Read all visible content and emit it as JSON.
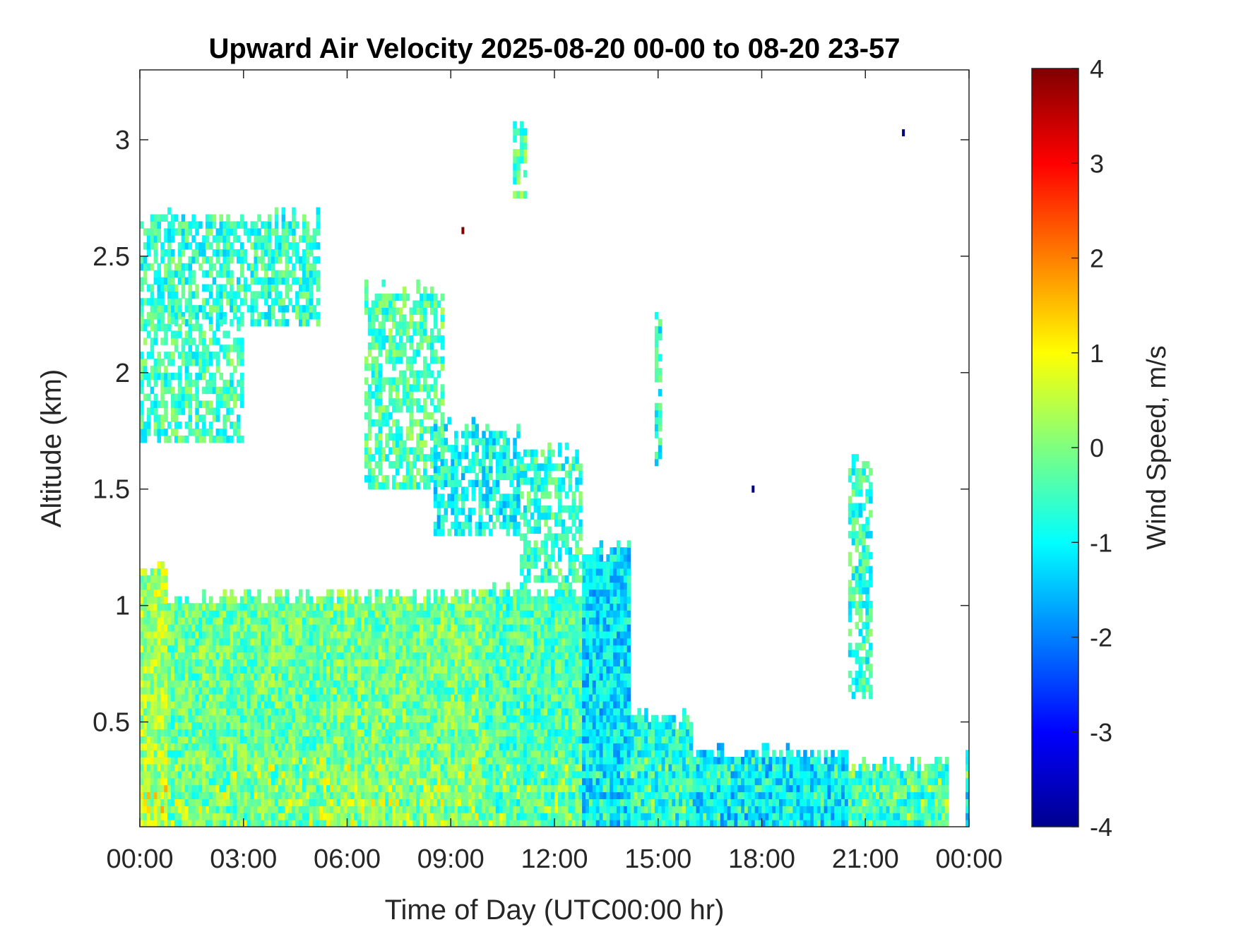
{
  "chart_data": {
    "type": "heatmap",
    "title": "Upward Air Velocity 2025-08-20 00-00 to 08-20 23-57",
    "xlabel": "Time of Day (UTC00:00 hr)",
    "ylabel": "Altitude (km)",
    "colorbar_label": "Wind Speed, m/s",
    "xlim": [
      0,
      24
    ],
    "ylim": [
      0.05,
      3.3
    ],
    "color_range": [
      -4,
      4
    ],
    "colormap": "jet",
    "xticks": [
      0,
      3,
      6,
      9,
      12,
      15,
      18,
      21,
      24
    ],
    "xtick_labels": [
      "00:00",
      "03:00",
      "06:00",
      "09:00",
      "12:00",
      "15:00",
      "18:00",
      "21:00",
      "00:00"
    ],
    "yticks": [
      0.5,
      1,
      1.5,
      2,
      2.5,
      3
    ],
    "ytick_labels": [
      "0.5",
      "1",
      "1.5",
      "2",
      "2.5",
      "3"
    ],
    "cticks": [
      -4,
      -3,
      -2,
      -1,
      0,
      1,
      2,
      3,
      4
    ],
    "ctick_labels": [
      "-4",
      "-3",
      "-2",
      "-1",
      "0",
      "1",
      "2",
      "3",
      "4"
    ],
    "grid": false,
    "regions": [
      {
        "t": [
          0.0,
          0.8
        ],
        "alt": [
          0.05,
          1.15
        ],
        "mean": 0.3
      },
      {
        "t": [
          0.8,
          5.5
        ],
        "alt": [
          0.05,
          1.02
        ],
        "mean": -0.2
      },
      {
        "t": [
          5.5,
          10.0
        ],
        "alt": [
          0.05,
          1.03
        ],
        "mean": -0.1
      },
      {
        "t": [
          10.0,
          12.8
        ],
        "alt": [
          0.05,
          1.05
        ],
        "mean": -0.4
      },
      {
        "t": [
          12.8,
          14.2
        ],
        "alt": [
          0.05,
          1.22
        ],
        "mean": -1.2
      },
      {
        "t": [
          14.2,
          16.0
        ],
        "alt": [
          0.05,
          0.5
        ],
        "mean": -0.8
      },
      {
        "t": [
          16.0,
          20.5
        ],
        "alt": [
          0.05,
          0.35
        ],
        "mean": -1.2
      },
      {
        "t": [
          20.5,
          23.4
        ],
        "alt": [
          0.05,
          0.3
        ],
        "mean": -0.6
      },
      {
        "t": [
          23.9,
          24.0
        ],
        "alt": [
          0.05,
          0.4
        ],
        "mean": -1.0
      },
      {
        "t": [
          0.0,
          5.2
        ],
        "alt": [
          2.2,
          2.65
        ],
        "mean": -0.6
      },
      {
        "t": [
          0.0,
          3.0
        ],
        "alt": [
          1.7,
          2.2
        ],
        "mean": -0.5
      },
      {
        "t": [
          6.5,
          8.8
        ],
        "alt": [
          1.5,
          2.35
        ],
        "mean": -0.4
      },
      {
        "t": [
          8.5,
          11.0
        ],
        "alt": [
          1.3,
          1.75
        ],
        "mean": -0.9
      },
      {
        "t": [
          11.0,
          12.8
        ],
        "alt": [
          1.1,
          1.65
        ],
        "mean": -0.6
      },
      {
        "t": [
          10.8,
          11.2
        ],
        "alt": [
          2.75,
          3.02
        ],
        "mean": -0.3
      },
      {
        "t": [
          14.9,
          15.1
        ],
        "alt": [
          1.6,
          2.25
        ],
        "mean": -0.8
      },
      {
        "t": [
          20.5,
          21.2
        ],
        "alt": [
          0.6,
          1.6
        ],
        "mean": -0.6
      }
    ],
    "points": [
      {
        "t": 9.35,
        "alt": 2.61,
        "value": 4
      },
      {
        "t": 22.1,
        "alt": 3.03,
        "value": -4
      },
      {
        "t": 17.75,
        "alt": 1.5,
        "value": -4
      }
    ]
  }
}
